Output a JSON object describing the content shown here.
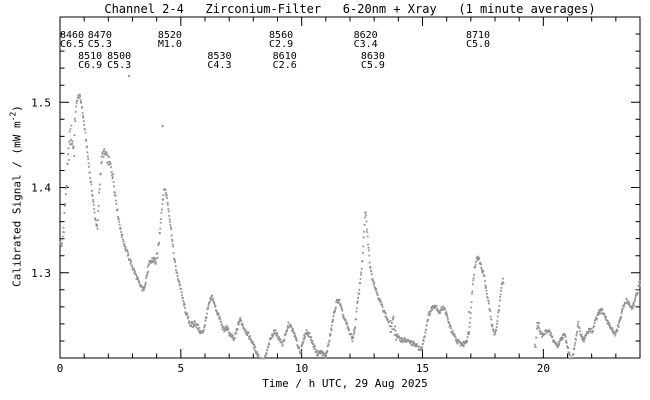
{
  "chart_data": {
    "type": "scatter",
    "title": "Channel 2-4   Zirconium-Filter   6-20nm + Xray   (1 minute averages)",
    "xlabel": "Time / h UTC, 29 Aug 2025",
    "ylabel": "Calibrated Signal / (mW m-2)",
    "ylabel_parts": {
      "prefix": "Calibrated Signal / (mW m",
      "sup": "-2",
      "suffix": ")"
    },
    "xlim": [
      0,
      24
    ],
    "ylim": [
      1.2,
      1.6
    ],
    "xticks_major": [
      0,
      5,
      10,
      15,
      20
    ],
    "xtick_labels": [
      "0",
      "5",
      "10",
      "15",
      "20"
    ],
    "x_minor_step_hours": 1,
    "yticks_major": [
      1.3,
      1.4,
      1.5
    ],
    "ytick_labels": [
      "1.3",
      "1.4",
      "1.5"
    ],
    "y_minor_step": 0.02,
    "grid": false,
    "legend": null,
    "cadence": "1 minute averages",
    "point_color": "#949494",
    "axis_color": "#000000",
    "data_gaps_hours": [
      [
        18.35,
        19.65
      ]
    ],
    "outlier_points": [
      [
        2.86,
        1.531
      ],
      [
        4.25,
        1.472
      ],
      [
        16.92,
        1.254
      ]
    ],
    "scatter_noise": {
      "base": 0.0028,
      "regions": [
        [
          0.12,
          0.62,
          0.013
        ],
        [
          1.6,
          2.35,
          0.006
        ],
        [
          3.55,
          4.15,
          0.005
        ],
        [
          5.3,
          5.75,
          0.004
        ],
        [
          13.65,
          13.9,
          0.008
        ],
        [
          19.68,
          19.82,
          0.008
        ]
      ]
    },
    "series_anchors": [
      [
        0,
        1.335
      ],
      [
        0.08,
        1.332
      ],
      [
        0.15,
        1.352
      ],
      [
        0.22,
        1.385
      ],
      [
        0.3,
        1.415
      ],
      [
        0.38,
        1.45
      ],
      [
        0.45,
        1.465
      ],
      [
        0.52,
        1.452
      ],
      [
        0.58,
        1.445
      ],
      [
        0.65,
        1.49
      ],
      [
        0.72,
        1.505
      ],
      [
        0.8,
        1.508
      ],
      [
        0.88,
        1.5
      ],
      [
        0.95,
        1.485
      ],
      [
        1.05,
        1.462
      ],
      [
        1.15,
        1.437
      ],
      [
        1.25,
        1.412
      ],
      [
        1.35,
        1.39
      ],
      [
        1.45,
        1.366
      ],
      [
        1.55,
        1.351
      ],
      [
        1.62,
        1.392
      ],
      [
        1.7,
        1.43
      ],
      [
        1.8,
        1.441
      ],
      [
        1.9,
        1.437
      ],
      [
        2,
        1.432
      ],
      [
        2.1,
        1.425
      ],
      [
        2.2,
        1.411
      ],
      [
        2.3,
        1.39
      ],
      [
        2.4,
        1.368
      ],
      [
        2.5,
        1.352
      ],
      [
        2.6,
        1.34
      ],
      [
        2.7,
        1.33
      ],
      [
        2.8,
        1.322
      ],
      [
        2.9,
        1.314
      ],
      [
        3,
        1.307
      ],
      [
        3.1,
        1.3
      ],
      [
        3.2,
        1.293
      ],
      [
        3.3,
        1.286
      ],
      [
        3.45,
        1.279
      ],
      [
        3.55,
        1.291
      ],
      [
        3.65,
        1.305
      ],
      [
        3.75,
        1.312
      ],
      [
        3.85,
        1.316
      ],
      [
        3.95,
        1.313
      ],
      [
        4.05,
        1.322
      ],
      [
        4.15,
        1.355
      ],
      [
        4.25,
        1.386
      ],
      [
        4.33,
        1.4
      ],
      [
        4.42,
        1.39
      ],
      [
        4.52,
        1.368
      ],
      [
        4.62,
        1.345
      ],
      [
        4.72,
        1.318
      ],
      [
        4.82,
        1.301
      ],
      [
        4.92,
        1.29
      ],
      [
        5,
        1.281
      ],
      [
        5.1,
        1.266
      ],
      [
        5.2,
        1.254
      ],
      [
        5.3,
        1.246
      ],
      [
        5.4,
        1.24
      ],
      [
        5.5,
        1.238
      ],
      [
        5.6,
        1.242
      ],
      [
        5.7,
        1.236
      ],
      [
        5.8,
        1.231
      ],
      [
        5.9,
        1.229
      ],
      [
        6,
        1.24
      ],
      [
        6.1,
        1.255
      ],
      [
        6.2,
        1.266
      ],
      [
        6.3,
        1.272
      ],
      [
        6.4,
        1.262
      ],
      [
        6.5,
        1.254
      ],
      [
        6.6,
        1.247
      ],
      [
        6.7,
        1.238
      ],
      [
        6.8,
        1.232
      ],
      [
        6.9,
        1.236
      ],
      [
        7,
        1.229
      ],
      [
        7.1,
        1.226
      ],
      [
        7.2,
        1.221
      ],
      [
        7.3,
        1.231
      ],
      [
        7.45,
        1.246
      ],
      [
        7.6,
        1.236
      ],
      [
        7.75,
        1.229
      ],
      [
        7.9,
        1.222
      ],
      [
        8.05,
        1.212
      ],
      [
        8.2,
        1.203
      ],
      [
        8.35,
        1.197
      ],
      [
        8.45,
        1.196
      ],
      [
        8.55,
        1.206
      ],
      [
        8.7,
        1.221
      ],
      [
        8.85,
        1.231
      ],
      [
        8.95,
        1.229
      ],
      [
        9.1,
        1.221
      ],
      [
        9.2,
        1.216
      ],
      [
        9.35,
        1.228
      ],
      [
        9.45,
        1.239
      ],
      [
        9.55,
        1.237
      ],
      [
        9.7,
        1.228
      ],
      [
        9.85,
        1.214
      ],
      [
        9.95,
        1.207
      ],
      [
        10.1,
        1.224
      ],
      [
        10.2,
        1.231
      ],
      [
        10.35,
        1.226
      ],
      [
        10.5,
        1.214
      ],
      [
        10.65,
        1.205
      ],
      [
        10.8,
        1.207
      ],
      [
        11,
        1.202
      ],
      [
        11.15,
        1.221
      ],
      [
        11.3,
        1.246
      ],
      [
        11.45,
        1.266
      ],
      [
        11.55,
        1.268
      ],
      [
        11.7,
        1.251
      ],
      [
        11.85,
        1.24
      ],
      [
        12,
        1.229
      ],
      [
        12.1,
        1.222
      ],
      [
        12.2,
        1.234
      ],
      [
        12.3,
        1.262
      ],
      [
        12.42,
        1.29
      ],
      [
        12.52,
        1.316
      ],
      [
        12.6,
        1.355
      ],
      [
        12.64,
        1.375
      ],
      [
        12.68,
        1.36
      ],
      [
        12.75,
        1.335
      ],
      [
        12.82,
        1.312
      ],
      [
        12.9,
        1.297
      ],
      [
        13,
        1.287
      ],
      [
        13.1,
        1.278
      ],
      [
        13.25,
        1.266
      ],
      [
        13.4,
        1.256
      ],
      [
        13.55,
        1.245
      ],
      [
        13.7,
        1.236
      ],
      [
        13.8,
        1.241
      ],
      [
        13.9,
        1.228
      ],
      [
        14.05,
        1.222
      ],
      [
        14.25,
        1.221
      ],
      [
        14.45,
        1.219
      ],
      [
        14.65,
        1.216
      ],
      [
        14.85,
        1.212
      ],
      [
        14.95,
        1.209
      ],
      [
        15.1,
        1.228
      ],
      [
        15.25,
        1.25
      ],
      [
        15.4,
        1.259
      ],
      [
        15.55,
        1.262
      ],
      [
        15.7,
        1.253
      ],
      [
        15.85,
        1.26
      ],
      [
        15.95,
        1.255
      ],
      [
        16.1,
        1.24
      ],
      [
        16.25,
        1.229
      ],
      [
        16.4,
        1.221
      ],
      [
        16.55,
        1.217
      ],
      [
        16.7,
        1.216
      ],
      [
        16.85,
        1.222
      ],
      [
        16.95,
        1.235
      ],
      [
        17.05,
        1.275
      ],
      [
        17.15,
        1.305
      ],
      [
        17.25,
        1.318
      ],
      [
        17.35,
        1.315
      ],
      [
        17.45,
        1.305
      ],
      [
        17.55,
        1.297
      ],
      [
        17.65,
        1.278
      ],
      [
        17.75,
        1.262
      ],
      [
        17.85,
        1.243
      ],
      [
        17.95,
        1.229
      ],
      [
        18.05,
        1.232
      ],
      [
        18.15,
        1.255
      ],
      [
        18.25,
        1.28
      ],
      [
        18.33,
        1.291
      ],
      [
        19.68,
        1.213
      ],
      [
        19.78,
        1.242
      ],
      [
        19.88,
        1.229
      ],
      [
        20,
        1.226
      ],
      [
        20.15,
        1.233
      ],
      [
        20.3,
        1.228
      ],
      [
        20.45,
        1.219
      ],
      [
        20.6,
        1.214
      ],
      [
        20.75,
        1.224
      ],
      [
        20.88,
        1.227
      ],
      [
        21,
        1.215
      ],
      [
        21.12,
        1.199
      ],
      [
        21.2,
        1.198
      ],
      [
        21.32,
        1.218
      ],
      [
        21.45,
        1.24
      ],
      [
        21.55,
        1.228
      ],
      [
        21.68,
        1.22
      ],
      [
        21.8,
        1.229
      ],
      [
        21.92,
        1.234
      ],
      [
        22.02,
        1.23
      ],
      [
        22.15,
        1.243
      ],
      [
        22.3,
        1.253
      ],
      [
        22.42,
        1.256
      ],
      [
        22.55,
        1.249
      ],
      [
        22.7,
        1.24
      ],
      [
        22.85,
        1.233
      ],
      [
        23,
        1.228
      ],
      [
        23.15,
        1.242
      ],
      [
        23.3,
        1.259
      ],
      [
        23.45,
        1.268
      ],
      [
        23.55,
        1.264
      ],
      [
        23.65,
        1.258
      ],
      [
        23.78,
        1.266
      ],
      [
        23.9,
        1.279
      ],
      [
        24,
        1.29
      ]
    ],
    "flare_labels": [
      {
        "flare": "8460",
        "cls": "C6.5",
        "t": 0.0,
        "row": 1
      },
      {
        "flare": "8470",
        "cls": "C5.3",
        "t": 1.15,
        "row": 1
      },
      {
        "flare": "8520",
        "cls": "M1.0",
        "t": 4.05,
        "row": 1
      },
      {
        "flare": "8560",
        "cls": "C2.9",
        "t": 8.65,
        "row": 1
      },
      {
        "flare": "8620",
        "cls": "C3.4",
        "t": 12.15,
        "row": 1
      },
      {
        "flare": "8710",
        "cls": "C5.0",
        "t": 16.8,
        "row": 1
      },
      {
        "flare": "8510",
        "cls": "C6.9",
        "t": 0.75,
        "row": 2
      },
      {
        "flare": "8500",
        "cls": "C5.3",
        "t": 1.95,
        "row": 2
      },
      {
        "flare": "8530",
        "cls": "C4.3",
        "t": 6.1,
        "row": 2
      },
      {
        "flare": "8610",
        "cls": "C2.6",
        "t": 8.8,
        "row": 2
      },
      {
        "flare": "8630",
        "cls": "C5.9",
        "t": 12.45,
        "row": 2
      }
    ]
  }
}
